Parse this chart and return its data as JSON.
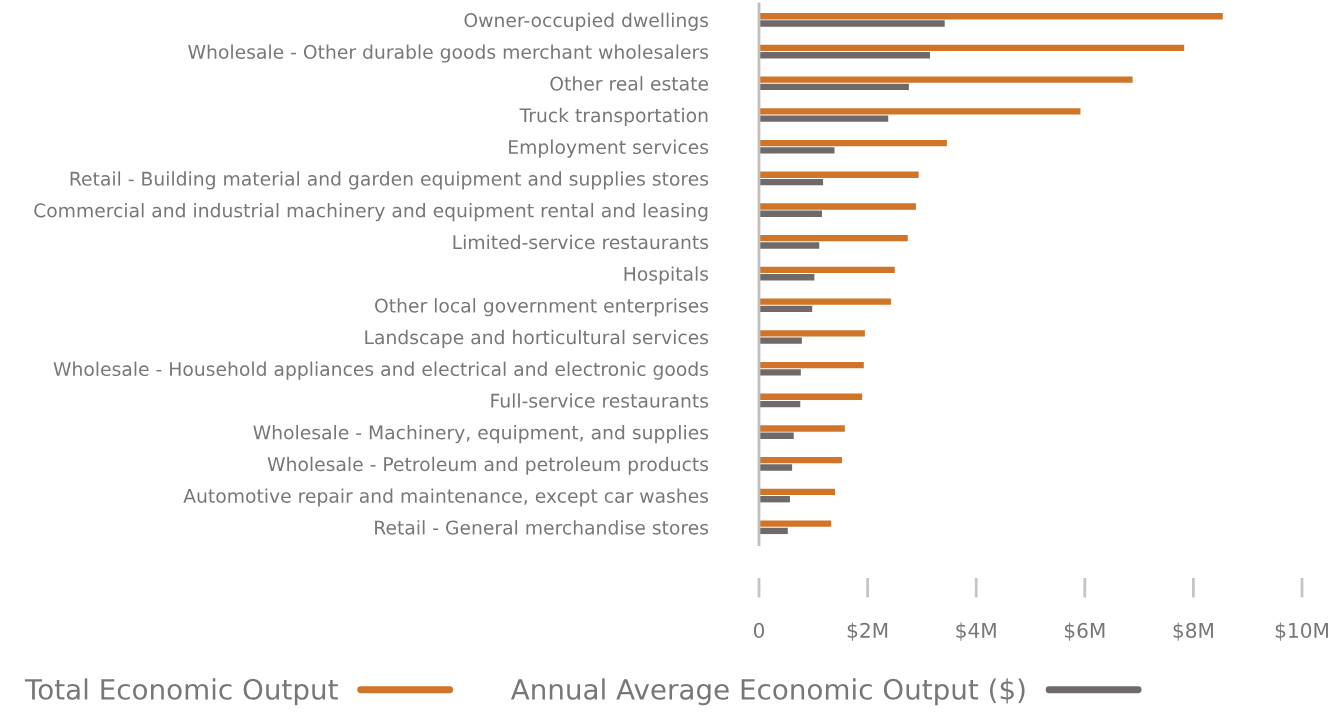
{
  "chart_data": {
    "type": "bar",
    "orientation": "horizontal",
    "categories": [
      "Owner-occupied dwellings",
      "Wholesale - Other durable goods merchant wholesalers",
      "Other real estate",
      "Truck transportation",
      "Employment services",
      "Retail - Building material and garden equipment and supplies stores",
      "Commercial and industrial machinery and equipment rental and leasing",
      "Limited-service restaurants",
      "Hospitals",
      "Other local government enterprises",
      "Landscape and horticultural services",
      "Wholesale - Household appliances and electrical and electronic goods",
      "Full-service restaurants",
      "Wholesale - Machinery, equipment, and supplies",
      "Wholesale - Petroleum and petroleum products",
      "Automotive repair and maintenance, except car washes",
      "Retail - General merchandise stores"
    ],
    "series": [
      {
        "name": "Total Economic Output",
        "color": "#d07428",
        "values": [
          8.54,
          7.83,
          6.88,
          5.92,
          3.46,
          2.94,
          2.89,
          2.74,
          2.5,
          2.43,
          1.95,
          1.93,
          1.9,
          1.58,
          1.53,
          1.4,
          1.33
        ]
      },
      {
        "name": "Annual Average Economic Output ($)",
        "color": "#6f6a69",
        "values": [
          3.42,
          3.15,
          2.76,
          2.38,
          1.39,
          1.18,
          1.16,
          1.11,
          1.02,
          0.98,
          0.79,
          0.77,
          0.76,
          0.64,
          0.61,
          0.57,
          0.53
        ]
      }
    ],
    "xlim": [
      0,
      10
    ],
    "xticks": [
      0,
      {
        "value": 2,
        "label": "$2M"
      },
      {
        "value": 4,
        "label": "$4M"
      },
      {
        "value": 6,
        "label": "$6M"
      },
      {
        "value": 8,
        "label": "$8M"
      },
      {
        "value": 10,
        "label": "$10M"
      }
    ],
    "grid": false,
    "legend": "bottom left"
  }
}
